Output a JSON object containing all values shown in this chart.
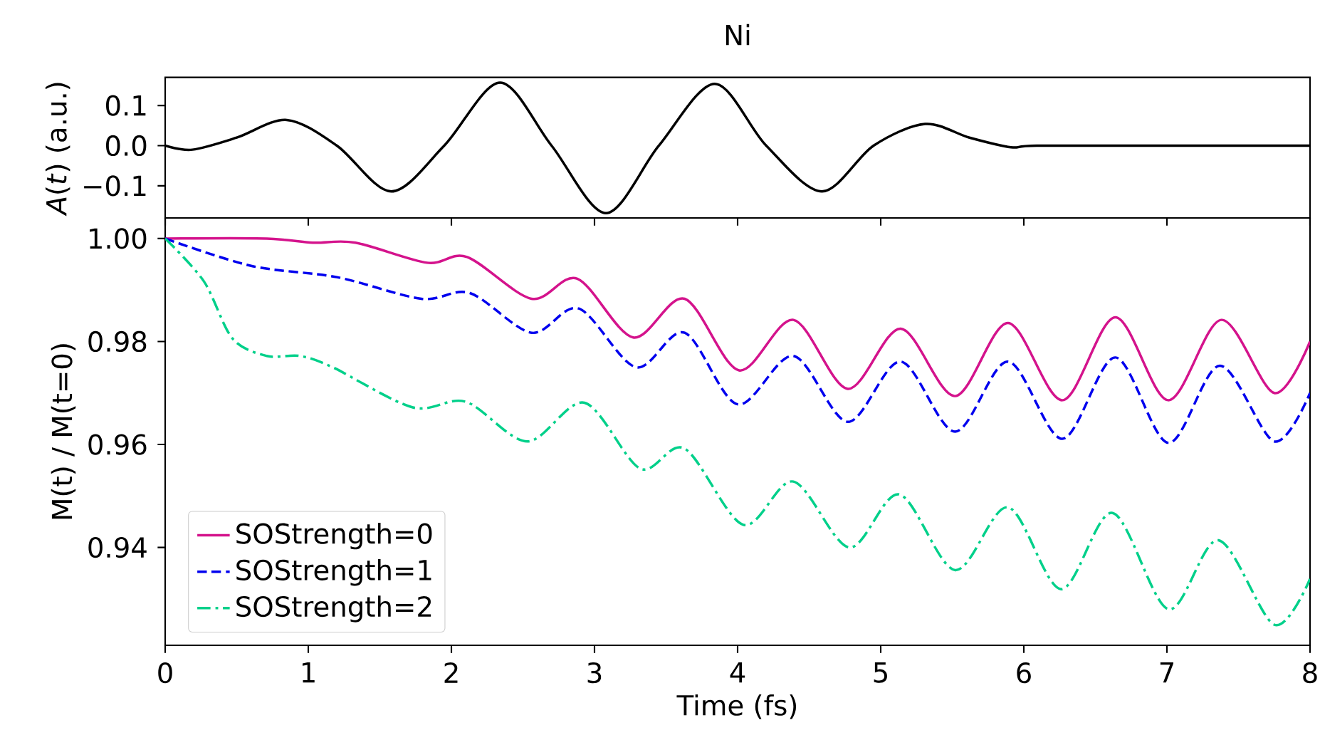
{
  "chart_data": [
    {
      "type": "line",
      "title": "Ni",
      "ylabel": "*A*(*t*) (a.u.)",
      "tick_labels": "y",
      "xlim": [
        0,
        8
      ],
      "ylim": [
        -0.18,
        0.17
      ],
      "xticks": [
        0,
        1,
        2,
        3,
        4,
        5,
        6,
        7,
        8
      ],
      "yticks": [
        {
          "value": -0.1,
          "label": "−0.1"
        },
        {
          "value": 0,
          "label": "0.0"
        },
        {
          "value": 0.1,
          "label": "0.1"
        }
      ],
      "series": [
        {
          "color": "#000000",
          "line_style": "solid",
          "x": [
            0,
            0.19,
            0.5,
            0.85,
            1.2,
            1.58,
            1.95,
            2.34,
            2.7,
            3.08,
            3.45,
            3.84,
            4.2,
            4.59,
            4.95,
            5.31,
            5.62,
            5.91,
            6.09,
            7,
            8
          ],
          "values": [
            0,
            -0.01,
            0.02,
            0.064,
            0,
            -0.114,
            0,
            0.157,
            0,
            -0.168,
            0,
            0.154,
            0,
            -0.114,
            0,
            0.054,
            0.02,
            -0.004,
            0,
            0,
            0
          ]
        }
      ]
    },
    {
      "type": "line",
      "xlabel": "Time (fs)",
      "ylabel": "M(t) / M(t=0)",
      "legend": "bottom left",
      "xlim": [
        0,
        8
      ],
      "ylim": [
        0.921,
        1.004
      ],
      "xticks": [
        0,
        1,
        2,
        3,
        4,
        5,
        6,
        7,
        8
      ],
      "yticks": [
        0.94,
        0.96,
        0.98,
        {
          "value": 1,
          "label": "1.00"
        }
      ],
      "series": [
        {
          "name": "SOStrength=0",
          "color": "#d4138c",
          "line_style": "solid",
          "x": [
            0,
            0.71,
            1.03,
            1.33,
            1.83,
            2.11,
            2.56,
            2.88,
            3.27,
            3.63,
            4.01,
            4.39,
            4.77,
            5.14,
            5.52,
            5.89,
            6.27,
            6.64,
            7.01,
            7.38,
            7.75,
            8
          ],
          "values": [
            1.0,
            1.0,
            0.9992,
            0.9992,
            0.9953,
            0.9964,
            0.9883,
            0.9922,
            0.9808,
            0.9883,
            0.9744,
            0.9842,
            0.9708,
            0.9825,
            0.9694,
            0.9836,
            0.9686,
            0.9847,
            0.9686,
            0.9842,
            0.97,
            0.98
          ]
        },
        {
          "name": "SOStrength=1",
          "color": "#0000ee",
          "line_style": "dashed",
          "x": [
            0,
            0.6,
            1.2,
            1.79,
            2.13,
            2.56,
            2.89,
            3.29,
            3.63,
            4.0,
            4.39,
            4.77,
            5.14,
            5.52,
            5.89,
            6.27,
            6.64,
            7.01,
            7.37,
            7.75,
            8
          ],
          "values": [
            1.0,
            0.9947,
            0.9925,
            0.9883,
            0.9894,
            0.9817,
            0.9864,
            0.975,
            0.9817,
            0.9678,
            0.9772,
            0.9644,
            0.9761,
            0.9625,
            0.9761,
            0.9611,
            0.9769,
            0.9603,
            0.9753,
            0.9606,
            0.97
          ]
        },
        {
          "name": "SOStrength=2",
          "color": "#00d08a",
          "line_style": "dashdot",
          "x": [
            0,
            0.27,
            0.47,
            0.71,
            0.94,
            1.17,
            1.73,
            2.1,
            2.53,
            2.93,
            3.32,
            3.63,
            4.04,
            4.39,
            4.78,
            5.13,
            5.52,
            5.89,
            6.26,
            6.62,
            7.01,
            7.36,
            7.75,
            8
          ],
          "values": [
            1.0,
            0.9917,
            0.9806,
            0.9772,
            0.9772,
            0.975,
            0.9672,
            0.9683,
            0.9606,
            0.9681,
            0.9553,
            0.9592,
            0.9444,
            0.9528,
            0.94,
            0.9503,
            0.9356,
            0.9478,
            0.9319,
            0.9467,
            0.928,
            0.9414,
            0.925,
            0.9339
          ]
        }
      ]
    }
  ]
}
